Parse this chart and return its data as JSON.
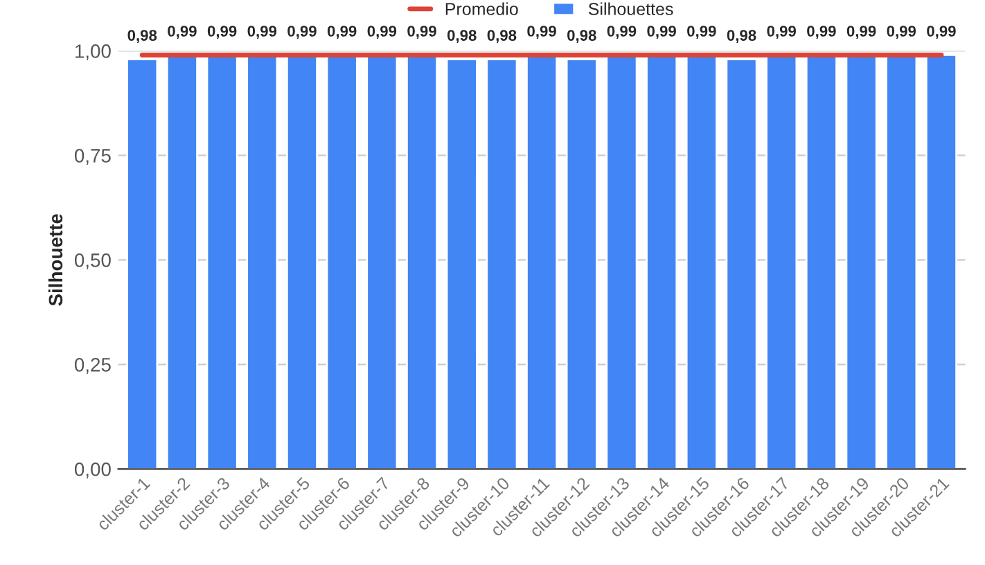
{
  "chart_data": {
    "type": "bar",
    "ylabel": "Silhouette",
    "categories": [
      "cluster-1",
      "cluster-2",
      "cluster-3",
      "cluster-4",
      "cluster-5",
      "cluster-6",
      "cluster-7",
      "cluster-8",
      "cluster-9",
      "cluster-10",
      "cluster-11",
      "cluster-12",
      "cluster-13",
      "cluster-14",
      "cluster-15",
      "cluster-16",
      "cluster-17",
      "cluster-18",
      "cluster-19",
      "cluster-20",
      "cluster-21"
    ],
    "series": [
      {
        "name": "Promedio",
        "type": "line",
        "color": "#db4437",
        "values": [
          0.99,
          0.99,
          0.99,
          0.99,
          0.99,
          0.99,
          0.99,
          0.99,
          0.99,
          0.99,
          0.99,
          0.99,
          0.99,
          0.99,
          0.99,
          0.99,
          0.99,
          0.99,
          0.99,
          0.99,
          0.99
        ]
      },
      {
        "name": "Silhouettes",
        "color": "#4285f4",
        "values": [
          0.98,
          0.99,
          0.99,
          0.99,
          0.99,
          0.99,
          0.99,
          0.99,
          0.98,
          0.98,
          0.99,
          0.98,
          0.99,
          0.99,
          0.99,
          0.98,
          0.99,
          0.99,
          0.99,
          0.99,
          0.99
        ],
        "value_labels": [
          "0,98",
          "0,99",
          "0,99",
          "0,99",
          "0,99",
          "0,99",
          "0,99",
          "0,99",
          "0,98",
          "0,98",
          "0,99",
          "0,98",
          "0,99",
          "0,99",
          "0,99",
          "0,98",
          "0,99",
          "0,99",
          "0,99",
          "0,99",
          "0,99"
        ]
      }
    ],
    "ylim": [
      0,
      1
    ],
    "yticks": [
      {
        "value": 0,
        "label": "0,00"
      },
      {
        "value": 0.25,
        "label": "0,25"
      },
      {
        "value": 0.5,
        "label": "0,50"
      },
      {
        "value": 0.75,
        "label": "0,75"
      },
      {
        "value": 1,
        "label": "1,00"
      }
    ],
    "grid": "y",
    "legend": "top"
  }
}
